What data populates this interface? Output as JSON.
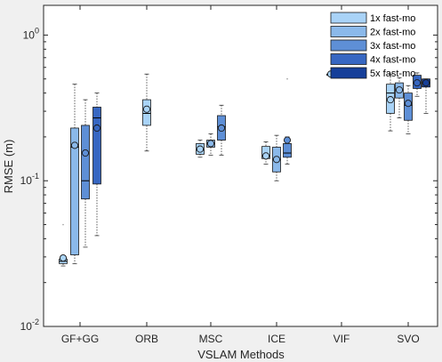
{
  "chart_data": {
    "type": "boxplot",
    "xlabel": "VSLAM Methods",
    "ylabel": "RMSE (m)",
    "yscale": "log",
    "ylim": [
      0.01,
      1.6
    ],
    "yticks": [
      {
        "value": 0.01,
        "base": "10",
        "exp": "-2"
      },
      {
        "value": 0.1,
        "base": "10",
        "exp": "-1"
      },
      {
        "value": 1,
        "base": "10",
        "exp": "0"
      }
    ],
    "grid": false,
    "legend_position": "top-right",
    "categories": [
      "GF+GG",
      "ORB",
      "MSC",
      "ICE",
      "VIF",
      "SVO"
    ],
    "series": [
      {
        "name": "1x fast-mo",
        "color": "#a9d3f7",
        "boxes": [
          {
            "category": 0,
            "whislo": 0.026,
            "q1": 0.027,
            "med": 0.028,
            "q3": 0.029,
            "whishi": 0.03,
            "mean": 0.0295,
            "fliers": [
              0.05
            ]
          },
          {
            "category": 1,
            "whislo": 0.16,
            "q1": 0.24,
            "med": 0.29,
            "q3": 0.36,
            "whishi": 0.54,
            "mean": 0.31,
            "fliers": []
          },
          {
            "category": 2,
            "whislo": 0.145,
            "q1": 0.152,
            "med": 0.162,
            "q3": 0.18,
            "whishi": 0.19,
            "mean": 0.165,
            "fliers": []
          },
          {
            "category": 3,
            "whislo": 0.13,
            "q1": 0.142,
            "med": 0.148,
            "q3": 0.172,
            "whishi": 0.185,
            "mean": 0.148,
            "fliers": []
          },
          {
            "category": 4,
            "whislo": 0.54,
            "q1": 0.54,
            "med": 0.54,
            "q3": 0.54,
            "whishi": 0.54,
            "mean": 0.54,
            "fliers": []
          },
          {
            "category": 5,
            "whislo": 0.22,
            "q1": 0.29,
            "med": 0.4,
            "q3": 0.46,
            "whishi": 0.54,
            "mean": 0.36,
            "fliers": []
          }
        ]
      },
      {
        "name": "2x fast-mo",
        "color": "#8bb9ea",
        "boxes": [
          {
            "category": 0,
            "whislo": 0.027,
            "q1": 0.031,
            "med": 0.17,
            "q3": 0.23,
            "whishi": 0.46,
            "mean": 0.175,
            "fliers": []
          },
          {
            "category": 2,
            "whislo": 0.15,
            "q1": 0.17,
            "med": 0.18,
            "q3": 0.19,
            "whishi": 0.21,
            "mean": 0.18,
            "fliers": []
          },
          {
            "category": 3,
            "whislo": 0.1,
            "q1": 0.115,
            "med": 0.14,
            "q3": 0.17,
            "whishi": 0.205,
            "mean": 0.14,
            "fliers": []
          },
          {
            "category": 4,
            "whislo": 0.54,
            "q1": 0.54,
            "med": 0.54,
            "q3": 0.54,
            "whishi": 0.54,
            "mean": 0.55,
            "fliers": []
          },
          {
            "category": 5,
            "whislo": 0.27,
            "q1": 0.37,
            "med": 0.42,
            "q3": 0.47,
            "whishi": 0.51,
            "mean": 0.42,
            "fliers": []
          }
        ]
      },
      {
        "name": "3x fast-mo",
        "color": "#5e8fd6",
        "boxes": [
          {
            "category": 0,
            "whislo": 0.035,
            "q1": 0.075,
            "med": 0.1,
            "q3": 0.24,
            "whishi": 0.36,
            "mean": 0.155,
            "fliers": []
          },
          {
            "category": 2,
            "whislo": 0.15,
            "q1": 0.19,
            "med": 0.235,
            "q3": 0.28,
            "whishi": 0.33,
            "mean": 0.23,
            "fliers": []
          },
          {
            "category": 3,
            "whislo": 0.13,
            "q1": 0.145,
            "med": 0.155,
            "q3": 0.18,
            "whishi": 0.2,
            "mean": 0.19,
            "fliers": [
              0.5
            ]
          },
          {
            "category": 4,
            "whislo": 0.54,
            "q1": 0.54,
            "med": 0.54,
            "q3": 0.54,
            "whishi": 0.54,
            "mean": 0.55,
            "fliers": []
          },
          {
            "category": 5,
            "whislo": 0.21,
            "q1": 0.26,
            "med": 0.33,
            "q3": 0.4,
            "whishi": 0.45,
            "mean": 0.34,
            "fliers": []
          }
        ]
      },
      {
        "name": "4x fast-mo",
        "color": "#3767c2",
        "boxes": [
          {
            "category": 0,
            "whislo": 0.042,
            "q1": 0.095,
            "med": 0.27,
            "q3": 0.32,
            "whishi": 0.4,
            "mean": 0.23,
            "fliers": []
          },
          {
            "category": 5,
            "whislo": 0.38,
            "q1": 0.43,
            "med": 0.47,
            "q3": 0.53,
            "whishi": 0.55,
            "mean": 0.47,
            "fliers": []
          }
        ]
      },
      {
        "name": "5x fast-mo",
        "color": "#163f99",
        "boxes": [
          {
            "category": 5,
            "whislo": 0.29,
            "q1": 0.44,
            "med": 0.47,
            "q3": 0.5,
            "whishi": 0.5,
            "mean": 0.47,
            "fliers": []
          }
        ]
      }
    ]
  }
}
